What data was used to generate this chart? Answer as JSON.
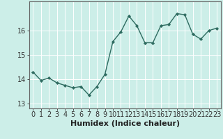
{
  "x": [
    0,
    1,
    2,
    3,
    4,
    5,
    6,
    7,
    8,
    9,
    10,
    11,
    12,
    13,
    14,
    15,
    16,
    17,
    18,
    19,
    20,
    21,
    22,
    23
  ],
  "y": [
    14.3,
    13.95,
    14.05,
    13.85,
    13.75,
    13.65,
    13.7,
    13.35,
    13.7,
    14.2,
    15.55,
    15.95,
    16.6,
    16.2,
    15.5,
    15.5,
    16.2,
    16.25,
    16.7,
    16.65,
    15.85,
    15.65,
    16.0,
    16.1
  ],
  "line_color": "#2e6b60",
  "marker": "D",
  "marker_size": 2.2,
  "bg_color": "#cceee8",
  "grid_color": "#ffffff",
  "axis_color": "#666666",
  "xlabel": "Humidex (Indice chaleur)",
  "ylabel": "",
  "xlim": [
    -0.5,
    23.5
  ],
  "ylim": [
    12.8,
    17.2
  ],
  "yticks": [
    13,
    14,
    15,
    16
  ],
  "xticks": [
    0,
    1,
    2,
    3,
    4,
    5,
    6,
    7,
    8,
    9,
    10,
    11,
    12,
    13,
    14,
    15,
    16,
    17,
    18,
    19,
    20,
    21,
    22,
    23
  ],
  "xlabel_fontsize": 8,
  "tick_fontsize": 7,
  "linewidth": 1.0
}
